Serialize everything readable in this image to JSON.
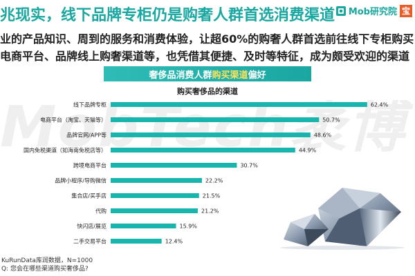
{
  "header": {
    "headline": "兆现实，线下品牌专柜仍是购奢人群首选消费渠道",
    "logo_text": "Mob研究院",
    "logo_tail": "宝"
  },
  "intro": {
    "line1": "业的产品知识、周到的服务和消费体验，让超60%的购奢人群首选前往线下专柜购买",
    "line2": "电商平台、品牌线上购奢渠道等，也凭借其便捷、及时等特征，成为颇受欢迎的渠道"
  },
  "banner": {
    "prefix": "奢侈品消费人群",
    "highlight": "购买渠道",
    "suffix": "偏好"
  },
  "watermark": "MobTech袤博",
  "colors": {
    "accent": "#1aa7a1",
    "bar": "#17b5ad"
  },
  "chart_data": {
    "type": "bar",
    "orientation": "horizontal",
    "title": "购买奢侈品的渠道",
    "categories": [
      "线下品牌专柜",
      "电商平台（淘宝、天猫等）",
      "品牌官网/APP等",
      "国内免税渠道（如海南免税店等）",
      "跨境电商平台",
      "品牌小程序/导购微信",
      "集合店/买手店",
      "代购",
      "快闪店/展览",
      "二手交易平台"
    ],
    "values": [
      62.4,
      50.7,
      48.6,
      44.9,
      30.7,
      22.2,
      21.5,
      21.2,
      15.9,
      12.4
    ],
    "value_labels": [
      "62.4%",
      "50.7%",
      "48.6%",
      "44.9%",
      "30.7%",
      "22.2%",
      "21.5%",
      "21.2%",
      "15.9%",
      "12.4%"
    ],
    "xlim": [
      0,
      70
    ],
    "grid": false
  },
  "footer": {
    "source": "KuRunData库润数据，N=1000",
    "question": "Q: 您会在哪些渠道购买奢侈品?"
  }
}
